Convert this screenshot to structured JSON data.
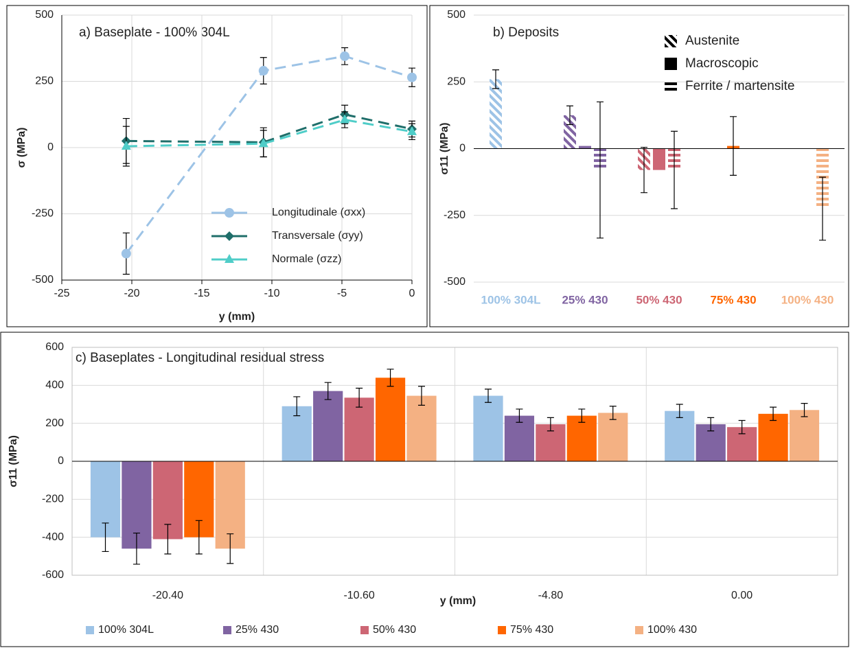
{
  "chart_data": [
    {
      "type": "line",
      "title": "a) Baseplate - 100% 304L",
      "x_label": "y (mm)",
      "y_label": "σ (MPa)",
      "x": [
        -20.4,
        -10.6,
        -4.8,
        0
      ],
      "xlim": [
        -25,
        0
      ],
      "xticks": [
        -25,
        -20,
        -15,
        -10,
        -5,
        0
      ],
      "ylim": [
        -500,
        500
      ],
      "yticks": [
        -500,
        -250,
        0,
        250,
        500
      ],
      "grid": true,
      "legend": "lower right",
      "series": [
        {
          "name": "Longitudinale (σxx)",
          "color": "#9dc3e6",
          "marker": "circle",
          "values": [
            -400,
            290,
            345,
            265
          ],
          "errors": [
            78,
            50,
            32,
            35
          ]
        },
        {
          "name": "Transversale (σyy)",
          "color": "#1f6e6a",
          "marker": "diamond",
          "values": [
            25,
            20,
            125,
            70
          ],
          "errors": [
            85,
            55,
            35,
            30
          ]
        },
        {
          "name": "Normale (σzz)",
          "color": "#4fcdc8",
          "marker": "triangle",
          "values": [
            5,
            15,
            105,
            60
          ],
          "errors": [
            75,
            50,
            30,
            30
          ]
        }
      ]
    },
    {
      "type": "bar",
      "title": "b) Deposits",
      "y_label": "σ11 (MPa)",
      "categories": [
        "100% 304L",
        "25% 430",
        "50% 430",
        "75% 430",
        "100% 430"
      ],
      "category_colors": [
        "#9dc3e6",
        "#8064a2",
        "#cd6674",
        "#ff6600",
        "#f4b183"
      ],
      "ylim": [
        -500,
        500
      ],
      "yticks": [
        -500,
        -250,
        0,
        250,
        500
      ],
      "grid": true,
      "legend": "upper right",
      "series": [
        {
          "name": "Austenite",
          "pattern": "diagonal",
          "values": [
            260,
            125,
            -80,
            null,
            null
          ],
          "errors": [
            35,
            35,
            85,
            null,
            null
          ]
        },
        {
          "name": "Macroscopic",
          "pattern": "solid",
          "values": [
            null,
            10,
            -80,
            10,
            null
          ],
          "errors": [
            null,
            null,
            null,
            110,
            null
          ]
        },
        {
          "name": "Ferrite / martensite",
          "pattern": "horizontal",
          "values": [
            null,
            -80,
            -80,
            null,
            -225
          ],
          "errors": [
            null,
            255,
            145,
            null,
            118
          ]
        }
      ]
    },
    {
      "type": "bar",
      "title": "c) Baseplates - Longitudinal residual stress",
      "x_label": "y (mm)",
      "y_label": "σ11 (MPa)",
      "categories": [
        "-20.40",
        "-10.60",
        "-4.80",
        "0.00"
      ],
      "ylim": [
        -600,
        600
      ],
      "yticks": [
        -600,
        -400,
        -200,
        0,
        200,
        400,
        600
      ],
      "grid": true,
      "legend": "bottom",
      "series": [
        {
          "name": "100% 304L",
          "color": "#9dc3e6",
          "values": [
            -400,
            290,
            345,
            265
          ],
          "errors": [
            75,
            50,
            35,
            35
          ]
        },
        {
          "name": "25% 430",
          "color": "#8064a2",
          "values": [
            -460,
            370,
            240,
            195
          ],
          "errors": [
            82,
            45,
            35,
            35
          ]
        },
        {
          "name": "50% 430",
          "color": "#cd6674",
          "values": [
            -410,
            335,
            195,
            180
          ],
          "errors": [
            78,
            50,
            35,
            35
          ]
        },
        {
          "name": "75% 430",
          "color": "#ff6600",
          "values": [
            -400,
            440,
            240,
            250
          ],
          "errors": [
            88,
            45,
            35,
            35
          ]
        },
        {
          "name": "100% 430",
          "color": "#f4b183",
          "values": [
            -460,
            345,
            255,
            270
          ],
          "errors": [
            78,
            50,
            35,
            35
          ]
        }
      ]
    }
  ]
}
